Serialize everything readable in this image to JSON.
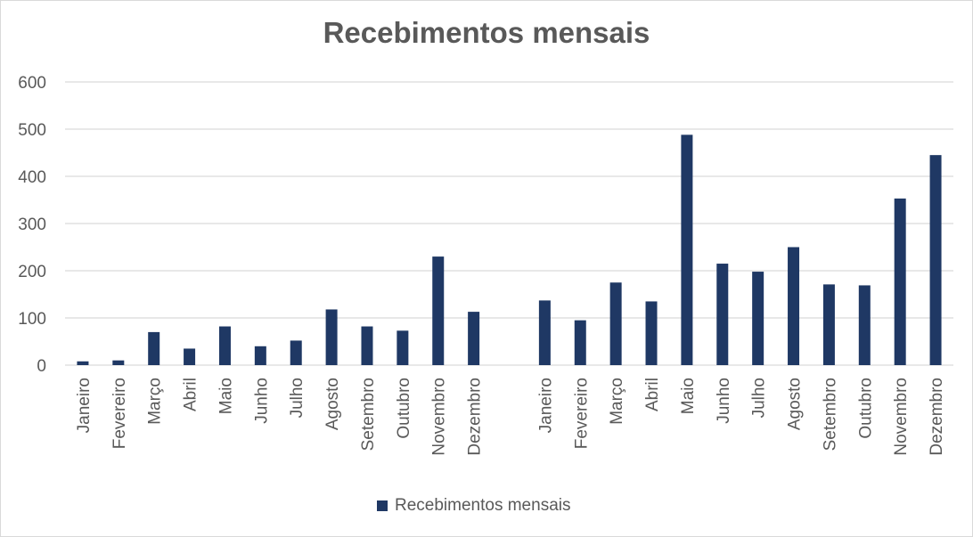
{
  "chart_data": {
    "type": "bar",
    "title": "Recebimentos mensais",
    "categories": [
      "Janeiro",
      "Fevereiro",
      "Março",
      "Abril",
      "Maio",
      "Junho",
      "Julho",
      "Agosto",
      "Setembro",
      "Outubro",
      "Novembro",
      "Dezembro",
      "",
      "Janeiro",
      "Fevereiro",
      "Março",
      "Abril",
      "Maio",
      "Junho",
      "Julho",
      "Agosto",
      "Setembro",
      "Outubro",
      "Novembro",
      "Dezembro"
    ],
    "series": [
      {
        "name": "Recebimentos mensais",
        "values": [
          8,
          10,
          70,
          35,
          82,
          40,
          52,
          118,
          82,
          73,
          230,
          113,
          null,
          137,
          95,
          175,
          135,
          488,
          215,
          198,
          250,
          171,
          169,
          353,
          445
        ]
      }
    ],
    "xlabel": "",
    "ylabel": "",
    "ylim": [
      0,
      600
    ],
    "yticks": [
      0,
      100,
      200,
      300,
      400,
      500,
      600
    ],
    "grid": true,
    "legend_position": "bottom",
    "colors": {
      "bar": "#1f3864",
      "grid": "#d9d9d9",
      "text": "#595959"
    }
  }
}
